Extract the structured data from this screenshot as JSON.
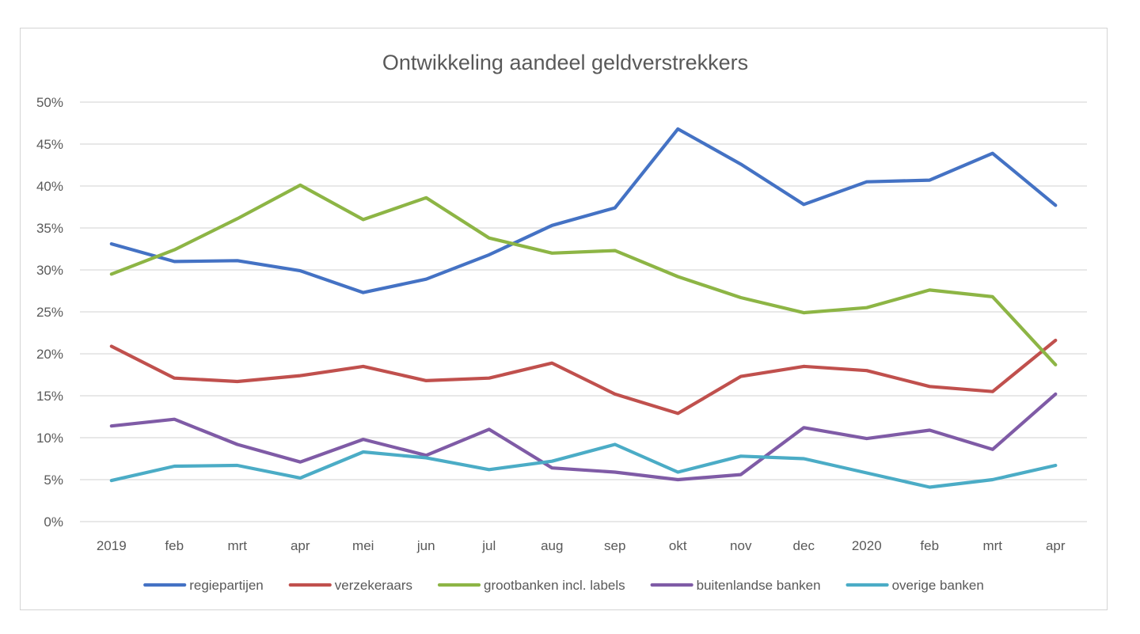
{
  "chart_data": {
    "type": "line",
    "title": "Ontwikkeling aandeel geldverstrekkers",
    "xlabel": "",
    "ylabel": "",
    "categories": [
      "2019",
      "feb",
      "mrt",
      "apr",
      "mei",
      "jun",
      "jul",
      "aug",
      "sep",
      "okt",
      "nov",
      "dec",
      "2020",
      "feb",
      "mrt",
      "apr"
    ],
    "y_ticks": [
      "0%",
      "5%",
      "10%",
      "15%",
      "20%",
      "25%",
      "30%",
      "35%",
      "40%",
      "45%",
      "50%"
    ],
    "ylim": [
      0,
      50
    ],
    "grid": true,
    "legend_position": "bottom",
    "series": [
      {
        "name": "regiepartijen",
        "color": "#4472C4",
        "values": [
          33.1,
          31.0,
          31.1,
          29.9,
          27.3,
          28.9,
          31.8,
          35.3,
          37.4,
          46.8,
          42.6,
          37.8,
          40.5,
          40.7,
          43.9,
          37.7
        ]
      },
      {
        "name": "verzekeraars",
        "color": "#C0504D",
        "values": [
          20.9,
          17.1,
          16.7,
          17.4,
          18.5,
          16.8,
          17.1,
          18.9,
          15.2,
          12.9,
          17.3,
          18.5,
          18.0,
          16.1,
          15.5,
          21.6
        ]
      },
      {
        "name": "grootbanken incl. labels",
        "color": "#8DB545",
        "values": [
          29.5,
          32.4,
          36.1,
          40.1,
          36.0,
          38.6,
          33.8,
          32.0,
          32.3,
          29.2,
          26.7,
          24.9,
          25.5,
          27.6,
          26.8,
          18.7
        ]
      },
      {
        "name": "buitenlandse banken",
        "color": "#7F5BA6",
        "values": [
          11.4,
          12.2,
          9.2,
          7.1,
          9.8,
          7.9,
          11.0,
          6.4,
          5.9,
          5.0,
          5.6,
          11.2,
          9.9,
          10.9,
          8.6,
          15.2
        ]
      },
      {
        "name": "overige banken",
        "color": "#4BACC6",
        "values": [
          4.9,
          6.6,
          6.7,
          5.2,
          8.3,
          7.6,
          6.2,
          7.2,
          9.2,
          5.9,
          7.8,
          7.5,
          5.8,
          4.1,
          5.0,
          6.7
        ]
      }
    ]
  }
}
